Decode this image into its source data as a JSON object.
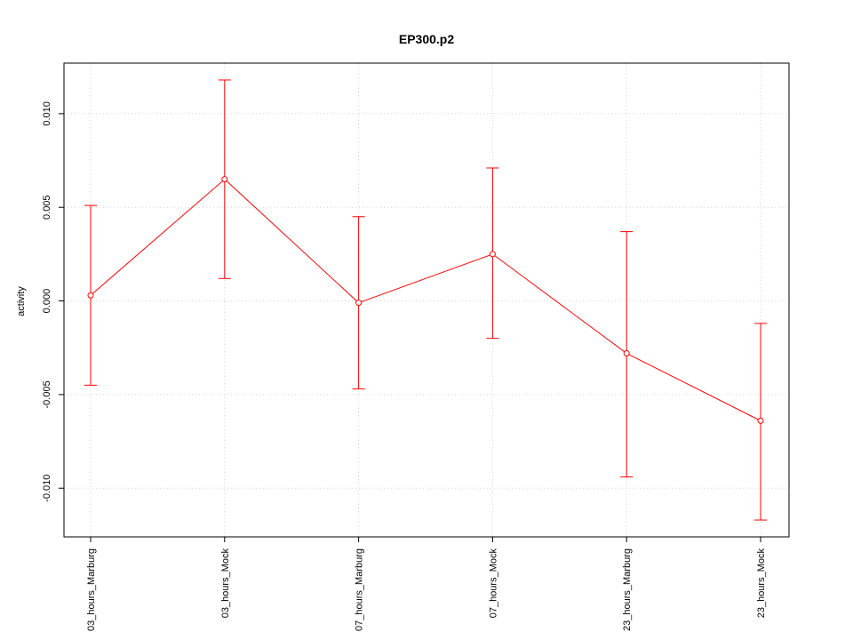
{
  "chart_data": {
    "type": "line",
    "title": "EP300.p2",
    "xlabel": "",
    "ylabel": "activity",
    "categories": [
      "03_hours_Marburg",
      "03_hours_Mock",
      "07_hours_Marburg",
      "07_hours_Mock",
      "23_hours_Marburg",
      "23_hours_Mock"
    ],
    "series": [
      {
        "values": [
          0.0003,
          0.0065,
          -0.0001,
          0.0025,
          -0.0028,
          -0.0064
        ],
        "error_upper": [
          0.0051,
          0.0118,
          0.0045,
          0.0071,
          0.0037,
          -0.0012
        ],
        "error_lower": [
          -0.0045,
          0.0012,
          -0.0047,
          -0.002,
          -0.0094,
          -0.0117
        ],
        "color": "#ff0000"
      }
    ],
    "ylim": [
      -0.0126,
      0.0127
    ],
    "yticks": [
      -0.01,
      -0.005,
      0.0,
      0.005,
      0.01
    ],
    "ytick_labels": [
      "-0.010",
      "-0.005",
      "0.000",
      "0.005",
      "0.010"
    ],
    "grid": true,
    "grid_color": "#d3d3d3",
    "line_color": "#ff0000"
  }
}
